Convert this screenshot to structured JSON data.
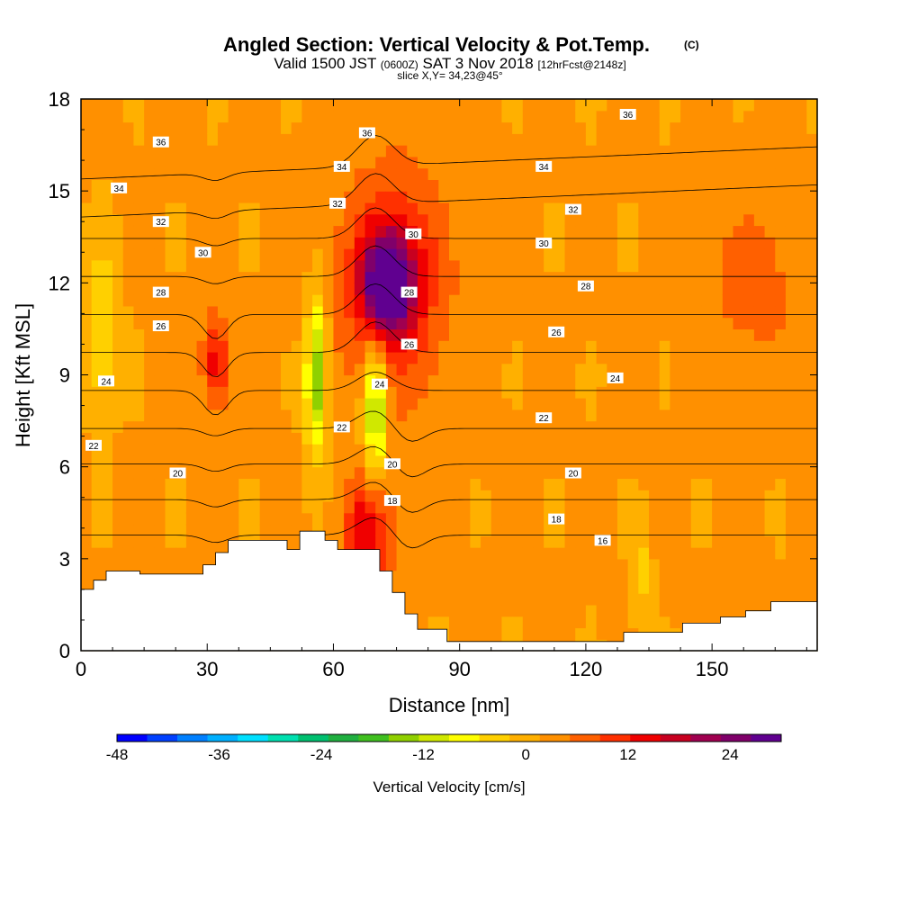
{
  "title": {
    "main": "Angled Section: Vertical Velocity & Pot.Temp.",
    "copyright": "(C)",
    "valid_prefix": "Valid 1500 JST",
    "valid_utc": "(0600Z)",
    "valid_date": "SAT 3 Nov 2018",
    "forecast": "[12hrFcst@2148z]",
    "slice": "slice X,Y= 34,23@45°"
  },
  "colorbar": {
    "title": "Vertical Velocity [cm/s]",
    "tick_labels": [
      "-48",
      "-36",
      "-24",
      "-12",
      "0",
      "12",
      "24"
    ],
    "colors": [
      "#0000ff",
      "#0040ff",
      "#0080ff",
      "#00b0ff",
      "#00e0ff",
      "#00e0b0",
      "#00c070",
      "#20b040",
      "#40c020",
      "#90d000",
      "#d0e800",
      "#ffff00",
      "#ffd000",
      "#ffb000",
      "#ff9000",
      "#ff6000",
      "#ff3000",
      "#f00000",
      "#c80020",
      "#a00050",
      "#80006a",
      "#600090"
    ]
  },
  "chart_data": {
    "type": "heatmap",
    "title": "Angled Section: Vertical Velocity & Pot.Temp.",
    "xlabel": "Distance [nm]",
    "ylabel": "Height [Kft MSL]",
    "xlim": [
      0,
      175
    ],
    "ylim": [
      0,
      18
    ],
    "x_ticks": [
      0,
      30,
      60,
      90,
      120,
      150
    ],
    "y_ticks": [
      0,
      3,
      6,
      9,
      12,
      15,
      18
    ],
    "x_tick_labels": [
      "0",
      "30",
      "60",
      "90",
      "120",
      "150"
    ],
    "y_tick_labels": [
      "0",
      "3",
      "6",
      "9",
      "12",
      "15",
      "18"
    ],
    "colorbar_range": [
      -48,
      30
    ],
    "background_velocity": 2,
    "velocity_features": [
      {
        "x": 73,
        "y": 12.0,
        "peak": 28,
        "sx": 4,
        "sy": 1.1
      },
      {
        "x": 74,
        "y": 12.0,
        "peak": 12,
        "sx": 9,
        "sy": 2.6
      },
      {
        "x": 68,
        "y": 3.8,
        "peak": 14,
        "sx": 4,
        "sy": 1.3
      },
      {
        "x": 32,
        "y": 9.5,
        "peak": 12,
        "sx": 2.2,
        "sy": 1.1
      },
      {
        "x": 56,
        "y": 9.0,
        "peak": -18,
        "sx": 1.8,
        "sy": 1.8
      },
      {
        "x": 70,
        "y": 8.0,
        "peak": -18,
        "sx": 2.0,
        "sy": 1.6
      },
      {
        "x": 5,
        "y": 10.5,
        "peak": -8,
        "sx": 2.5,
        "sy": 1.8
      },
      {
        "x": 133,
        "y": 2.5,
        "peak": -6,
        "sx": 1.5,
        "sy": 1.0
      },
      {
        "x": 160,
        "y": 12,
        "peak": 5,
        "sx": 8,
        "sy": 2
      }
    ],
    "terrain_kft": [
      [
        0,
        2.0
      ],
      [
        3,
        2.0
      ],
      [
        3,
        2.3
      ],
      [
        6,
        2.3
      ],
      [
        6,
        2.6
      ],
      [
        14,
        2.6
      ],
      [
        14,
        2.5
      ],
      [
        29,
        2.5
      ],
      [
        29,
        2.8
      ],
      [
        32,
        2.8
      ],
      [
        32,
        3.2
      ],
      [
        35,
        3.2
      ],
      [
        35,
        3.6
      ],
      [
        49,
        3.6
      ],
      [
        49,
        3.3
      ],
      [
        52,
        3.3
      ],
      [
        52,
        3.9
      ],
      [
        58,
        3.9
      ],
      [
        58,
        3.6
      ],
      [
        61,
        3.6
      ],
      [
        61,
        3.3
      ],
      [
        71,
        3.3
      ],
      [
        71,
        2.6
      ],
      [
        74,
        2.6
      ],
      [
        74,
        1.9
      ],
      [
        77,
        1.9
      ],
      [
        77,
        1.2
      ],
      [
        80,
        1.2
      ],
      [
        80,
        0.7
      ],
      [
        87,
        0.7
      ],
      [
        87,
        0.3
      ],
      [
        129,
        0.3
      ],
      [
        129,
        0.6
      ],
      [
        143,
        0.6
      ],
      [
        143,
        0.9
      ],
      [
        152,
        0.9
      ],
      [
        152,
        1.1
      ],
      [
        158,
        1.1
      ],
      [
        158,
        1.3
      ],
      [
        164,
        1.3
      ],
      [
        164,
        1.6
      ],
      [
        175,
        1.6
      ]
    ],
    "theta_contours": [
      16,
      18,
      20,
      22,
      24,
      26,
      28,
      30,
      32,
      34,
      36
    ],
    "theta_labels": [
      {
        "value": 36,
        "x": 19,
        "y": 16.6
      },
      {
        "value": 36,
        "x": 68,
        "y": 16.9
      },
      {
        "value": 36,
        "x": 130,
        "y": 17.5
      },
      {
        "value": 34,
        "x": 9,
        "y": 15.1
      },
      {
        "value": 34,
        "x": 62,
        "y": 15.8
      },
      {
        "value": 34,
        "x": 110,
        "y": 15.8
      },
      {
        "value": 32,
        "x": 19,
        "y": 14.0
      },
      {
        "value": 32,
        "x": 61,
        "y": 14.6
      },
      {
        "value": 32,
        "x": 117,
        "y": 14.4
      },
      {
        "value": 30,
        "x": 29,
        "y": 13.0
      },
      {
        "value": 30,
        "x": 79,
        "y": 13.6
      },
      {
        "value": 30,
        "x": 110,
        "y": 13.3
      },
      {
        "value": 28,
        "x": 19,
        "y": 11.7
      },
      {
        "value": 28,
        "x": 78,
        "y": 11.7
      },
      {
        "value": 28,
        "x": 120,
        "y": 11.9
      },
      {
        "value": 26,
        "x": 19,
        "y": 10.6
      },
      {
        "value": 26,
        "x": 78,
        "y": 10.0
      },
      {
        "value": 26,
        "x": 113,
        "y": 10.4
      },
      {
        "value": 24,
        "x": 6,
        "y": 8.8
      },
      {
        "value": 24,
        "x": 71,
        "y": 8.7
      },
      {
        "value": 24,
        "x": 127,
        "y": 8.9
      },
      {
        "value": 22,
        "x": 3,
        "y": 6.7
      },
      {
        "value": 22,
        "x": 62,
        "y": 7.3
      },
      {
        "value": 22,
        "x": 110,
        "y": 7.6
      },
      {
        "value": 20,
        "x": 23,
        "y": 5.8
      },
      {
        "value": 20,
        "x": 74,
        "y": 6.1
      },
      {
        "value": 20,
        "x": 117,
        "y": 5.8
      },
      {
        "value": 18,
        "x": 74,
        "y": 4.9
      },
      {
        "value": 18,
        "x": 113,
        "y": 4.3
      },
      {
        "value": 16,
        "x": 124,
        "y": 3.6
      }
    ]
  }
}
